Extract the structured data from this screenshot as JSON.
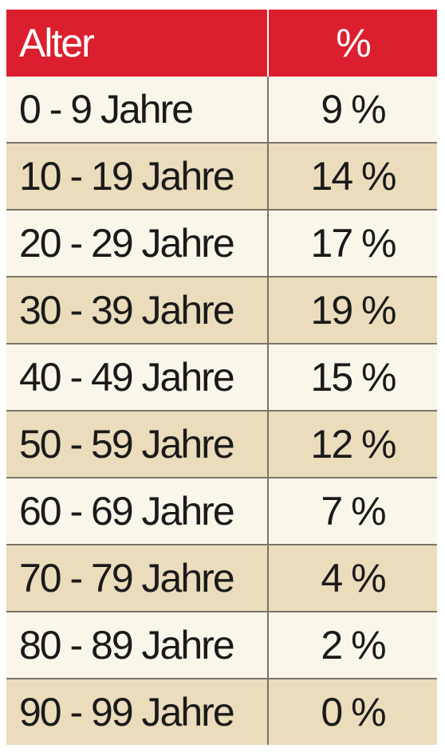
{
  "chart_data": {
    "type": "table",
    "columns": [
      "Alter",
      "%"
    ],
    "rows": [
      {
        "age": "0 - 9 Jahre",
        "pct": "9 %",
        "value": 9
      },
      {
        "age": "10 - 19 Jahre",
        "pct": "14 %",
        "value": 14
      },
      {
        "age": "20 - 29 Jahre",
        "pct": "17 %",
        "value": 17
      },
      {
        "age": "30 - 39 Jahre",
        "pct": "19 %",
        "value": 19
      },
      {
        "age": "40 - 49 Jahre",
        "pct": "15 %",
        "value": 15
      },
      {
        "age": "50 - 59 Jahre",
        "pct": "12 %",
        "value": 12
      },
      {
        "age": "60 - 69 Jahre",
        "pct": "7 %",
        "value": 7
      },
      {
        "age": "70 - 79 Jahre",
        "pct": "4 %",
        "value": 4
      },
      {
        "age": "80 - 89 Jahre",
        "pct": "2 %",
        "value": 2
      },
      {
        "age": "90 - 99 Jahre",
        "pct": "0 %",
        "value": 0
      }
    ]
  },
  "colors": {
    "header_bg": "#db1f2e",
    "header_text": "#ffffff",
    "row_light": "#fbf6ea",
    "row_tan": "#ebdcbc",
    "divider": "#7a7468",
    "text": "#1a1a1a"
  }
}
